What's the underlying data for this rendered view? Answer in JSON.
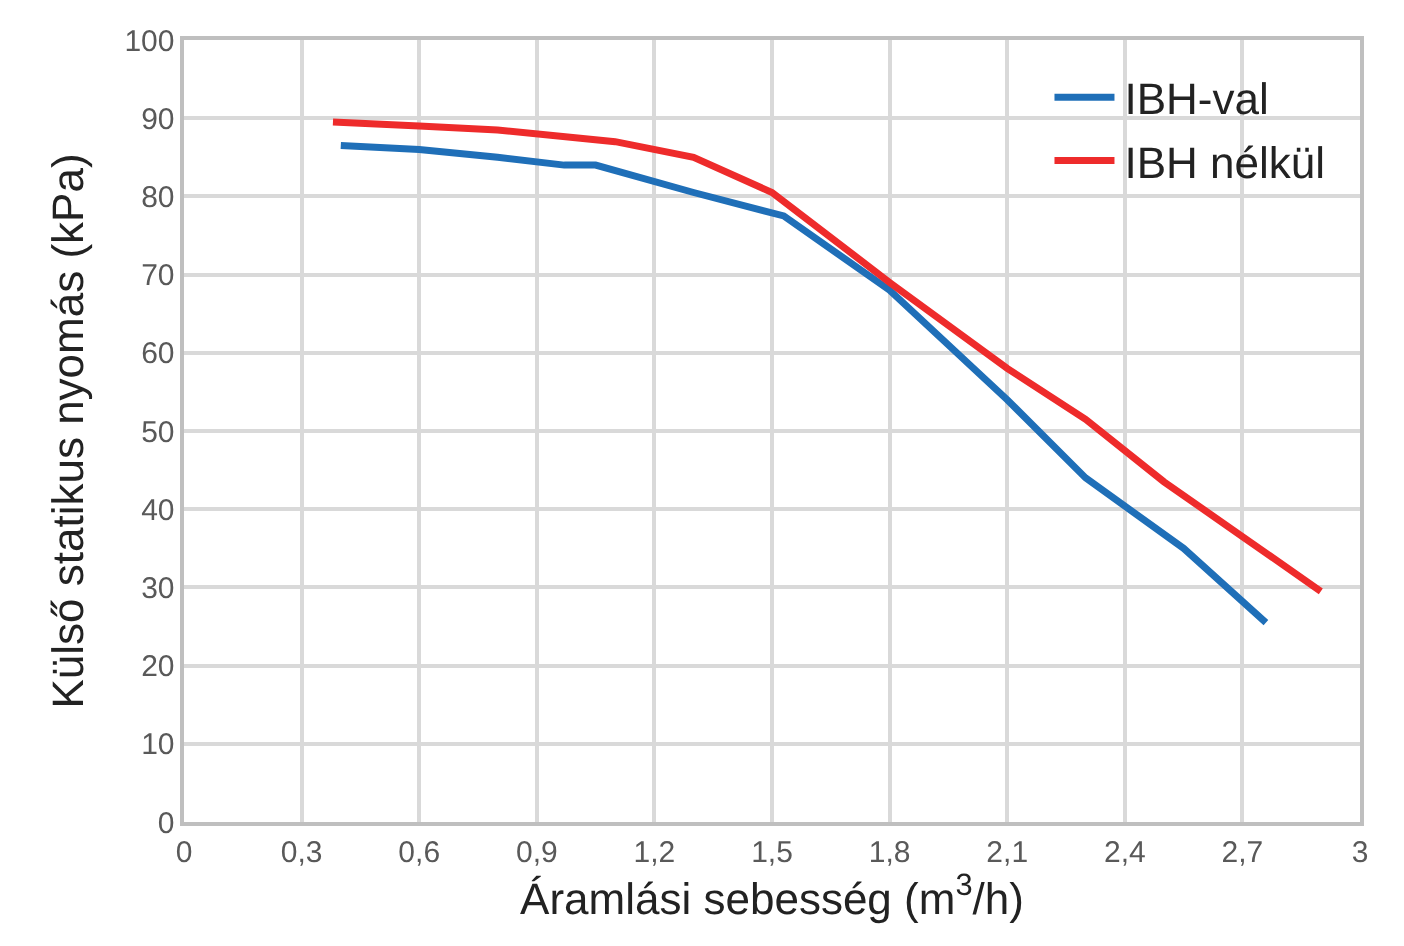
{
  "chart_data": {
    "type": "line",
    "xlabel": "Áramlási sebesség (m$^{3}$/h)",
    "ylabel": "Külső statikus nyomás (kPa)",
    "series": [
      {
        "name": "IBH-val",
        "color": "#1f6fb8",
        "x": [
          0.4,
          0.6,
          0.8,
          0.97,
          1.05,
          1.3,
          1.53,
          1.8,
          2.1,
          2.3,
          2.55,
          2.76
        ],
        "values": [
          86.5,
          86,
          85,
          84,
          84,
          80.5,
          77.5,
          68,
          54,
          44,
          35,
          25.5
        ]
      },
      {
        "name": "IBH nélkül",
        "color": "#ee2b2b",
        "x": [
          0.38,
          0.6,
          0.8,
          1.1,
          1.3,
          1.5,
          1.8,
          2.1,
          2.3,
          2.5,
          2.7,
          2.9
        ],
        "values": [
          89.5,
          89,
          88.5,
          87,
          85,
          80.5,
          69,
          58,
          51.5,
          43.5,
          36.5,
          29.5
        ]
      }
    ],
    "xlim": [
      0,
      3
    ],
    "xticks": [
      0,
      {
        "value": 0.3,
        "label": "0,3"
      },
      {
        "value": 0.6,
        "label": "0,6"
      },
      {
        "value": 0.9,
        "label": "0,9"
      },
      {
        "value": 1.2,
        "label": "1,2"
      },
      {
        "value": 1.5,
        "label": "1,5"
      },
      {
        "value": 1.8,
        "label": "1,8"
      },
      {
        "value": 2.1,
        "label": "2,1"
      },
      {
        "value": 2.4,
        "label": "2,4"
      },
      {
        "value": 2.7,
        "label": "2,7"
      },
      3
    ],
    "ylim": [
      0,
      100
    ],
    "yticks": [
      0,
      10,
      20,
      30,
      40,
      50,
      60,
      70,
      80,
      90,
      100
    ],
    "grid": true,
    "legend": "top right",
    "marker": "none",
    "line_style": "solid"
  }
}
